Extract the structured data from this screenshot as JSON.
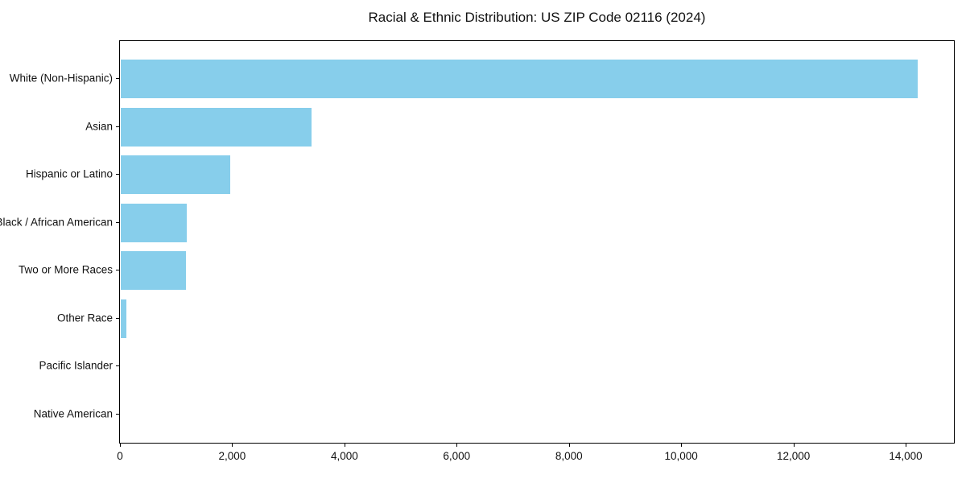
{
  "chart_data": {
    "type": "bar",
    "orientation": "horizontal",
    "title": "Racial & Ethnic Distribution: US ZIP Code 02116 (2024)",
    "categories": [
      "White (Non-Hispanic)",
      "Asian",
      "Hispanic or Latino",
      "Black / African American",
      "Two or More Races",
      "Other Race",
      "Pacific Islander",
      "Native American"
    ],
    "values": [
      14200,
      3400,
      1950,
      1170,
      1160,
      100,
      0,
      0
    ],
    "xlabel": "",
    "ylabel": "",
    "xlim": [
      0,
      14860
    ],
    "xticks": [
      0,
      2000,
      4000,
      6000,
      8000,
      10000,
      12000,
      14000
    ],
    "xtick_labels": [
      "0",
      "2,000",
      "4,000",
      "6,000",
      "8,000",
      "10,000",
      "12,000",
      "14,000"
    ],
    "bar_color": "#87CEEB",
    "background_color": "#ffffff",
    "spine_color": "#000000",
    "grid": false,
    "legend": null
  }
}
